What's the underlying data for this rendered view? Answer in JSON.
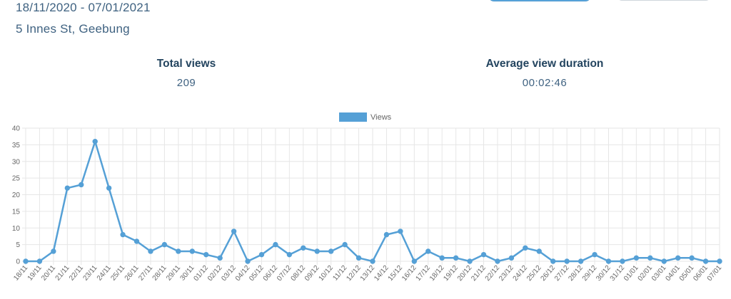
{
  "header": {
    "date_range": "18/11/2020 - 07/01/2021",
    "address": "5 Innes St, Geebung"
  },
  "stats": {
    "total_views": {
      "label": "Total views",
      "value": "209"
    },
    "avg_duration": {
      "label": "Average view duration",
      "value": "00:02:46"
    }
  },
  "colors": {
    "line": "#55a0d6",
    "grid": "#e6e6e6",
    "primary_button": "#5ba7de"
  },
  "chart_data": {
    "type": "line",
    "legend": {
      "label": "Views",
      "position": "top-center"
    },
    "ylim": [
      0,
      40
    ],
    "y_ticks": [
      0,
      5,
      10,
      15,
      20,
      25,
      30,
      35,
      40
    ],
    "grid": true,
    "categories": [
      "18/11",
      "19/11",
      "20/11",
      "21/11",
      "22/11",
      "23/11",
      "24/11",
      "25/11",
      "26/11",
      "27/11",
      "28/11",
      "29/11",
      "30/11",
      "01/12",
      "02/12",
      "03/12",
      "04/12",
      "05/12",
      "06/12",
      "07/12",
      "08/12",
      "09/12",
      "10/12",
      "11/12",
      "12/12",
      "13/12",
      "14/12",
      "15/12",
      "16/12",
      "17/12",
      "18/12",
      "19/12",
      "20/12",
      "21/12",
      "22/12",
      "23/12",
      "24/12",
      "25/12",
      "26/12",
      "27/12",
      "28/12",
      "29/12",
      "30/12",
      "31/12",
      "01/01",
      "02/01",
      "03/01",
      "04/01",
      "05/01",
      "06/01",
      "07/01"
    ],
    "series": [
      {
        "name": "Views",
        "values": [
          0,
          0,
          3,
          22,
          23,
          36,
          22,
          8,
          6,
          3,
          5,
          3,
          3,
          2,
          1,
          9,
          0,
          2,
          5,
          2,
          4,
          3,
          3,
          5,
          1,
          0,
          8,
          9,
          0,
          3,
          1,
          1,
          0,
          2,
          0,
          1,
          4,
          3,
          0,
          0,
          0,
          2,
          0,
          0,
          1,
          1,
          0,
          1,
          1,
          0,
          0
        ]
      }
    ]
  }
}
